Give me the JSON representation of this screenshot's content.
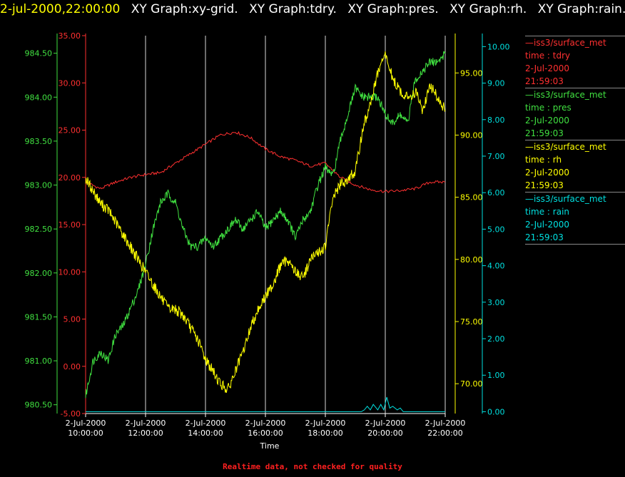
{
  "header": {
    "timestamp": "2-jul-2000,22:00:00",
    "graphs": [
      "XY Graph:xy-grid.",
      "XY Graph:tdry.",
      "XY Graph:pres.",
      "XY Graph:rh.",
      "XY Graph:rain."
    ]
  },
  "legend": [
    {
      "name": "iss3/surface_met",
      "field": "time : tdry",
      "date": "2-Jul-2000",
      "time": "21:59:03",
      "color": "#ff3030"
    },
    {
      "name": "iss3/surface_met",
      "field": "time : pres",
      "date": "2-Jul-2000",
      "time": "21:59:03",
      "color": "#40e040"
    },
    {
      "name": "iss3/surface_met",
      "field": "time : rh",
      "date": "2-Jul-2000",
      "time": "21:59:03",
      "color": "#ffff00"
    },
    {
      "name": "iss3/surface_met",
      "field": "time : rain",
      "date": "2-Jul-2000",
      "time": "21:59:03",
      "color": "#00e0e0"
    }
  ],
  "footer": "Realtime data, not checked for quality",
  "chart_data": {
    "type": "line",
    "xlabel": "Time",
    "x_ticks": [
      [
        "2-Jul-2000",
        "10:00:00"
      ],
      [
        "2-Jul-2000",
        "12:00:00"
      ],
      [
        "2-Jul-2000",
        "14:00:00"
      ],
      [
        "2-Jul-2000",
        "16:00:00"
      ],
      [
        "2-Jul-2000",
        "18:00:00"
      ],
      [
        "2-Jul-2000",
        "20:00:00"
      ],
      [
        "2-Jul-2000",
        "22:00:00"
      ]
    ],
    "xlim_hours": [
      10,
      22
    ],
    "grid": "vertical",
    "axes": {
      "tdry": {
        "color": "#ff3030",
        "side": "left",
        "ylim": [
          -5,
          35
        ],
        "ticks": [
          "-5.00",
          "0.00",
          "5.00",
          "10.00",
          "15.00",
          "20.00",
          "25.00",
          "30.00",
          "35.00"
        ]
      },
      "pres": {
        "color": "#40e040",
        "side": "left",
        "ylim": [
          980.4,
          984.7
        ],
        "ticks": [
          "980.50",
          "981.00",
          "981.50",
          "982.00",
          "982.50",
          "983.00",
          "983.50",
          "984.00",
          "984.50"
        ]
      },
      "rh": {
        "color": "#ffff00",
        "side": "right",
        "ylim": [
          67.6,
          98.0
        ],
        "ticks": [
          "70.00",
          "75.00",
          "80.00",
          "85.00",
          "90.00",
          "95.00"
        ]
      },
      "rain": {
        "color": "#00e0e0",
        "side": "right",
        "ylim": [
          -0.05,
          10.3
        ],
        "ticks": [
          "0.00",
          "1.00",
          "2.00",
          "3.00",
          "4.00",
          "5.00",
          "6.00",
          "7.00",
          "8.00",
          "9.00",
          "10.00"
        ]
      }
    },
    "series": [
      {
        "name": "tdry",
        "axis": "tdry",
        "x": [
          10,
          10.5,
          11,
          11.5,
          12,
          12.5,
          13,
          13.5,
          14,
          14.5,
          15,
          15.5,
          16,
          16.5,
          17,
          17.5,
          18,
          18.5,
          19,
          19.5,
          20,
          20.5,
          21,
          21.5,
          22
        ],
        "y": [
          19.5,
          18.8,
          19.5,
          20,
          20.3,
          20.5,
          21.5,
          22.5,
          23.5,
          24.5,
          24.8,
          24.2,
          23,
          22.2,
          21.8,
          21.2,
          21.5,
          20,
          19.2,
          18.7,
          18.5,
          18.6,
          18.8,
          19.5,
          19.5
        ]
      },
      {
        "name": "pres",
        "axis": "pres",
        "x": [
          10,
          10.25,
          10.5,
          10.75,
          11,
          11.25,
          11.5,
          11.75,
          12,
          12.25,
          12.5,
          12.75,
          13,
          13.25,
          13.5,
          13.75,
          14,
          14.25,
          14.5,
          14.75,
          15,
          15.25,
          15.5,
          15.75,
          16,
          16.25,
          16.5,
          16.75,
          17,
          17.25,
          17.5,
          17.75,
          18,
          18.25,
          18.5,
          18.75,
          19,
          19.25,
          19.5,
          19.75,
          20,
          20.25,
          20.5,
          20.75,
          21,
          21.25,
          21.5,
          21.75,
          22
        ],
        "y": [
          980.6,
          981.0,
          981.1,
          981.0,
          981.3,
          981.4,
          981.6,
          981.8,
          982.1,
          982.5,
          982.8,
          982.9,
          982.8,
          982.5,
          982.3,
          982.3,
          982.4,
          982.3,
          982.4,
          982.5,
          982.6,
          982.5,
          982.6,
          982.7,
          982.5,
          982.6,
          982.7,
          982.6,
          982.4,
          982.6,
          982.7,
          983.0,
          983.2,
          983.1,
          983.5,
          983.8,
          984.1,
          984.0,
          984.0,
          984.0,
          983.8,
          983.7,
          983.8,
          983.7,
          984.2,
          984.3,
          984.4,
          984.4,
          984.5
        ]
      },
      {
        "name": "rh",
        "axis": "rh",
        "x": [
          10,
          10.25,
          10.5,
          10.75,
          11,
          11.25,
          11.5,
          11.75,
          12,
          12.25,
          12.5,
          12.75,
          13,
          13.25,
          13.5,
          13.75,
          14,
          14.25,
          14.5,
          14.75,
          15,
          15.25,
          15.5,
          15.75,
          16,
          16.25,
          16.5,
          16.75,
          17,
          17.25,
          17.5,
          17.75,
          18,
          18.25,
          18.5,
          18.75,
          19,
          19.25,
          19.5,
          19.75,
          20,
          20.25,
          20.5,
          20.75,
          21,
          21.25,
          21.5,
          21.75,
          22
        ],
        "y": [
          86.5,
          85.5,
          84.5,
          84,
          83,
          82,
          81,
          80,
          79,
          78,
          77,
          76,
          76,
          75.5,
          74.5,
          73.5,
          72,
          71,
          70,
          69.5,
          71,
          72.5,
          74.5,
          76,
          77,
          78,
          79.5,
          80,
          79,
          78.5,
          80,
          80.5,
          81,
          85,
          86,
          86.5,
          87,
          90.5,
          92.5,
          95,
          96.5,
          94.5,
          93.5,
          93,
          93.5,
          92,
          94,
          93,
          92
        ]
      },
      {
        "name": "rain",
        "axis": "rain",
        "x": [
          10,
          19.2,
          19.3,
          19.4,
          19.5,
          19.6,
          19.75,
          19.85,
          19.95,
          20.05,
          20.15,
          20.25,
          20.4,
          20.5,
          20.6,
          22
        ],
        "y": [
          0,
          0,
          0.05,
          0.15,
          0.05,
          0.2,
          0.05,
          0.2,
          0.05,
          0.4,
          0.1,
          0.15,
          0.05,
          0.1,
          0,
          0
        ]
      }
    ]
  }
}
